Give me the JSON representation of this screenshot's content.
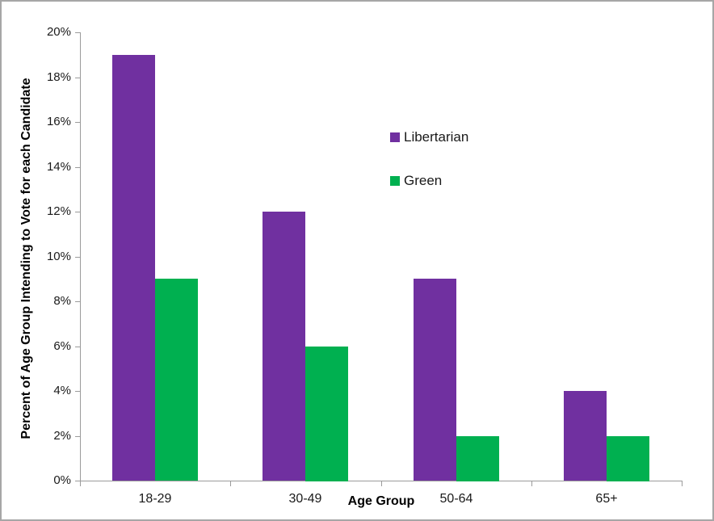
{
  "chart_data": {
    "type": "bar",
    "title": "",
    "xlabel": "Age Group",
    "ylabel": "Percent of Age Group Intending to Vote for each Candidate",
    "categories": [
      "18-29",
      "30-49",
      "50-64",
      "65+"
    ],
    "series": [
      {
        "name": "Libertarian",
        "color": "#7030A0",
        "values": [
          19,
          12,
          9,
          4
        ]
      },
      {
        "name": "Green",
        "color": "#00B050",
        "values": [
          9,
          6,
          2,
          2
        ]
      }
    ],
    "ylim": [
      0,
      20
    ],
    "ytick_step": 2,
    "ytick_labels": [
      "0%",
      "2%",
      "4%",
      "6%",
      "8%",
      "10%",
      "12%",
      "14%",
      "16%",
      "18%",
      "20%"
    ],
    "grid": false,
    "legend_position": "floating-upper-middle"
  },
  "colors": {
    "axis_line": "#9b9b9b",
    "frame_border": "#A6A6A6",
    "tick_text": "#1a1a1a",
    "title_text": "#000000",
    "background": "#FFFFFF"
  }
}
